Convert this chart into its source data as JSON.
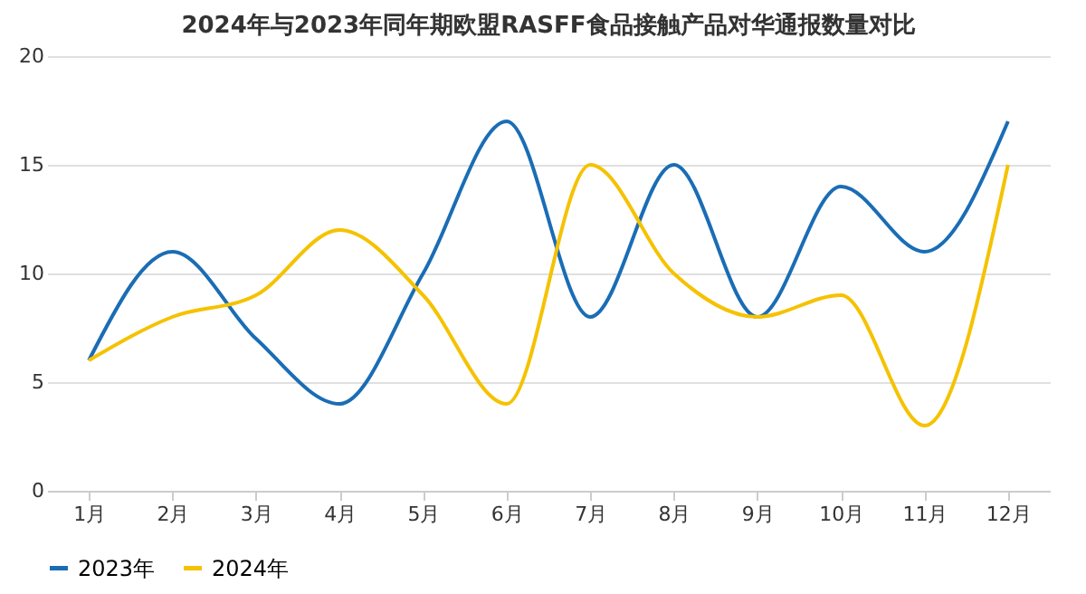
{
  "chart_data": {
    "type": "line",
    "title": "2024年与2023年同年期欧盟RASFF食品接触产品对华通报数量对比",
    "categories": [
      "1月",
      "2月",
      "3月",
      "4月",
      "5月",
      "6月",
      "7月",
      "8月",
      "9月",
      "10月",
      "11月",
      "12月"
    ],
    "series": [
      {
        "name": "2023年",
        "color": "#1a6db5",
        "values": [
          6,
          11,
          7,
          4,
          10,
          17,
          8,
          15,
          8,
          14,
          11,
          17
        ]
      },
      {
        "name": "2024年",
        "color": "#f5c200",
        "values": [
          6,
          8,
          9,
          12,
          9,
          4,
          15,
          10,
          8,
          9,
          3,
          15
        ]
      }
    ],
    "ylim": [
      0,
      20
    ],
    "yticks": [
      0,
      5,
      10,
      15,
      20
    ],
    "grid": "y",
    "legend": "bottom",
    "marker": "none",
    "line_style": "solid"
  }
}
